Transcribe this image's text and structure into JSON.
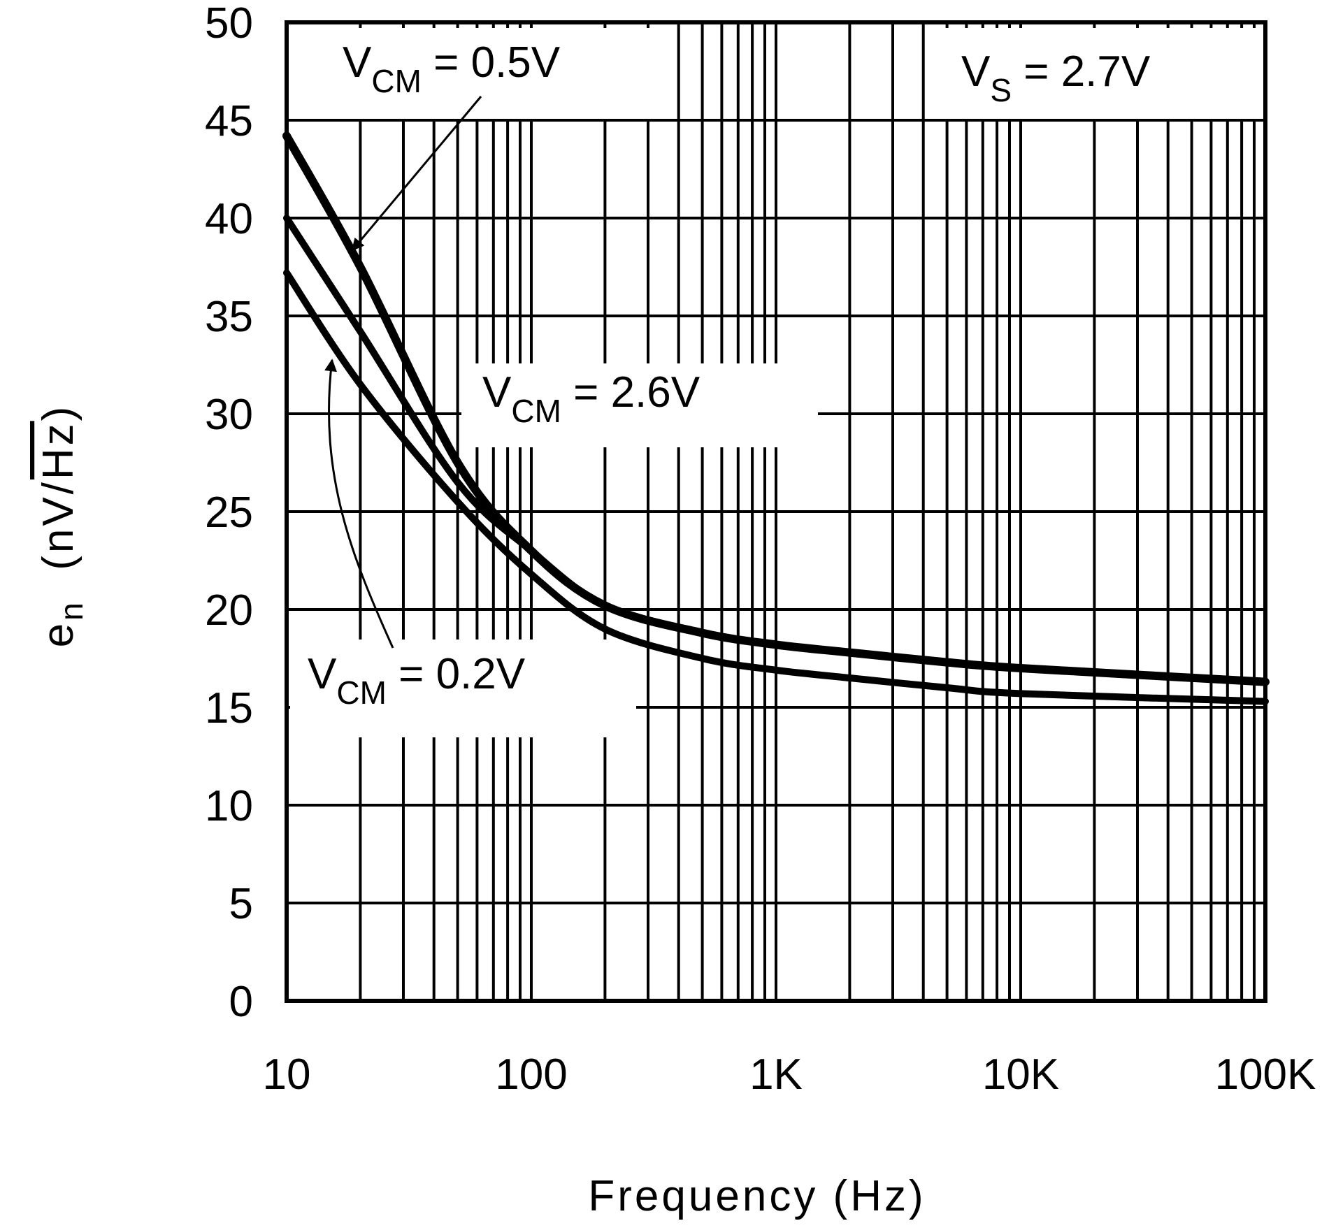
{
  "chart_data": {
    "type": "line",
    "title": "",
    "xlabel": "Frequency (Hz)",
    "ylabel": {
      "main": "e",
      "sub": "n",
      "unit_open": "(nV/",
      "unit_root": "Hz",
      "unit_close": ")"
    },
    "x_scale": "log",
    "xlim": [
      10,
      100000
    ],
    "ylim": [
      0,
      50
    ],
    "grid": true,
    "x_ticks": [
      {
        "value": 10,
        "label": "10"
      },
      {
        "value": 100,
        "label": "100"
      },
      {
        "value": 1000,
        "label": "1K"
      },
      {
        "value": 10000,
        "label": "10K"
      },
      {
        "value": 100000,
        "label": "100K"
      }
    ],
    "y_ticks": [
      {
        "value": 0,
        "label": "0"
      },
      {
        "value": 5,
        "label": "5"
      },
      {
        "value": 10,
        "label": "10"
      },
      {
        "value": 15,
        "label": "15"
      },
      {
        "value": 20,
        "label": "20"
      },
      {
        "value": 25,
        "label": "25"
      },
      {
        "value": 30,
        "label": "30"
      },
      {
        "value": 35,
        "label": "35"
      },
      {
        "value": 40,
        "label": "40"
      },
      {
        "value": 45,
        "label": "45"
      },
      {
        "value": 50,
        "label": "50"
      }
    ],
    "series": [
      {
        "name": "VCM = 0.5V",
        "x": [
          10,
          20,
          50,
          100,
          200,
          500,
          1000,
          2000,
          5000,
          10000,
          100000
        ],
        "y": [
          44.2,
          37.5,
          27.5,
          23.0,
          20.2,
          18.8,
          18.2,
          17.8,
          17.3,
          17.0,
          16.3
        ]
      },
      {
        "name": "VCM = 2.6V",
        "x": [
          10,
          20,
          50,
          100,
          200,
          500,
          1000,
          2000,
          5000,
          10000,
          100000
        ],
        "y": [
          40.0,
          34.2,
          26.5,
          23.0,
          20.2,
          18.8,
          18.2,
          17.8,
          17.3,
          17.0,
          16.3
        ]
      },
      {
        "name": "VCM = 0.2V",
        "x": [
          10,
          20,
          50,
          100,
          200,
          500,
          1000,
          2000,
          5000,
          10000,
          100000
        ],
        "y": [
          37.2,
          31.5,
          25.5,
          21.8,
          19.0,
          17.5,
          16.9,
          16.5,
          16.0,
          15.7,
          15.3
        ]
      }
    ],
    "annotations": [
      {
        "key": "vs",
        "prefix": "V",
        "sub": "S",
        "suffix": " = 2.7V"
      },
      {
        "key": "v05",
        "prefix": "V",
        "sub": "CM",
        "suffix": " = 0.5V",
        "points_to": {
          "x": 20,
          "y": 38
        }
      },
      {
        "key": "v26",
        "prefix": "V",
        "sub": "CM",
        "suffix": " = 2.6V"
      },
      {
        "key": "v02",
        "prefix": "V",
        "sub": "CM",
        "suffix": " = 0.2V",
        "points_to": {
          "x": 16,
          "y": 33
        }
      }
    ]
  }
}
